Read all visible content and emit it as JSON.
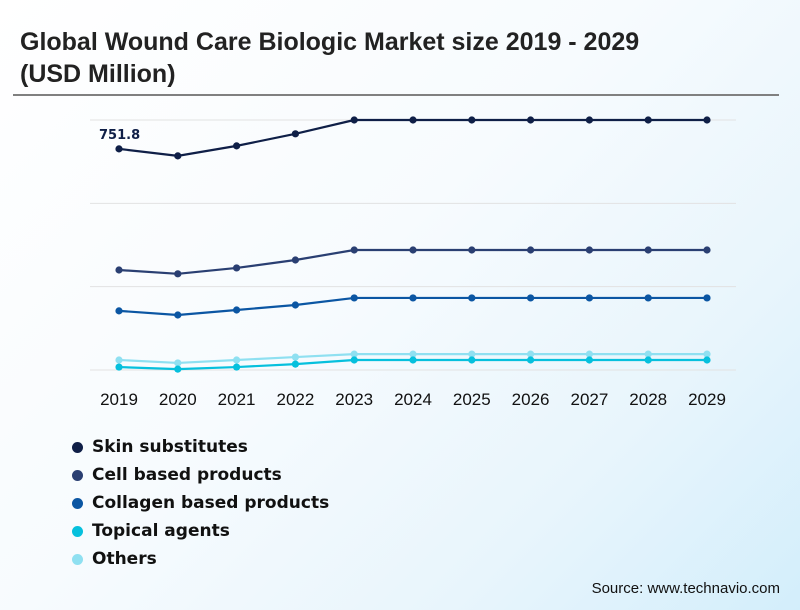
{
  "title": "Global Wound Care Biologic Market size 2019 - 2029 (USD Million)",
  "source": "Source: www.technavio.com",
  "chart_data": {
    "type": "line",
    "title": "Global Wound Care Biologic Market size 2019 - 2029 (USD Million)",
    "xlabel": "",
    "ylabel": "USD Million",
    "ylim": [
      0,
      850
    ],
    "grid": true,
    "gridlines": [
      0,
      283.3,
      566.7,
      850
    ],
    "legend_position": "bottom-left",
    "categories": [
      "2019",
      "2020",
      "2021",
      "2022",
      "2023",
      "2024",
      "2025",
      "2026",
      "2027",
      "2028",
      "2029"
    ],
    "series": [
      {
        "name": "Skin substitutes",
        "color": "#0f1f47",
        "values": [
          751.8,
          728,
          762,
          803,
          850,
          850,
          850,
          850,
          850,
          850,
          850
        ]
      },
      {
        "name": "Cell based products",
        "color": "#2a3f72",
        "values": [
          340,
          327,
          347,
          374,
          408,
          408,
          408,
          408,
          408,
          408,
          408
        ]
      },
      {
        "name": "Collagen based products",
        "color": "#0b56a3",
        "values": [
          201,
          187,
          204,
          221,
          245,
          245,
          245,
          245,
          245,
          245,
          245
        ]
      },
      {
        "name": "Topical agents",
        "color": "#06c0dd",
        "values": [
          10,
          3,
          10,
          20,
          34,
          34,
          34,
          34,
          34,
          34,
          34
        ]
      },
      {
        "name": "Others",
        "color": "#8fe0f1",
        "values": [
          34,
          24,
          34,
          44,
          54,
          54,
          54,
          54,
          54,
          54,
          54
        ]
      }
    ],
    "annotations": [
      {
        "series": "Skin substitutes",
        "category": "2019",
        "text": "751.8"
      }
    ]
  }
}
